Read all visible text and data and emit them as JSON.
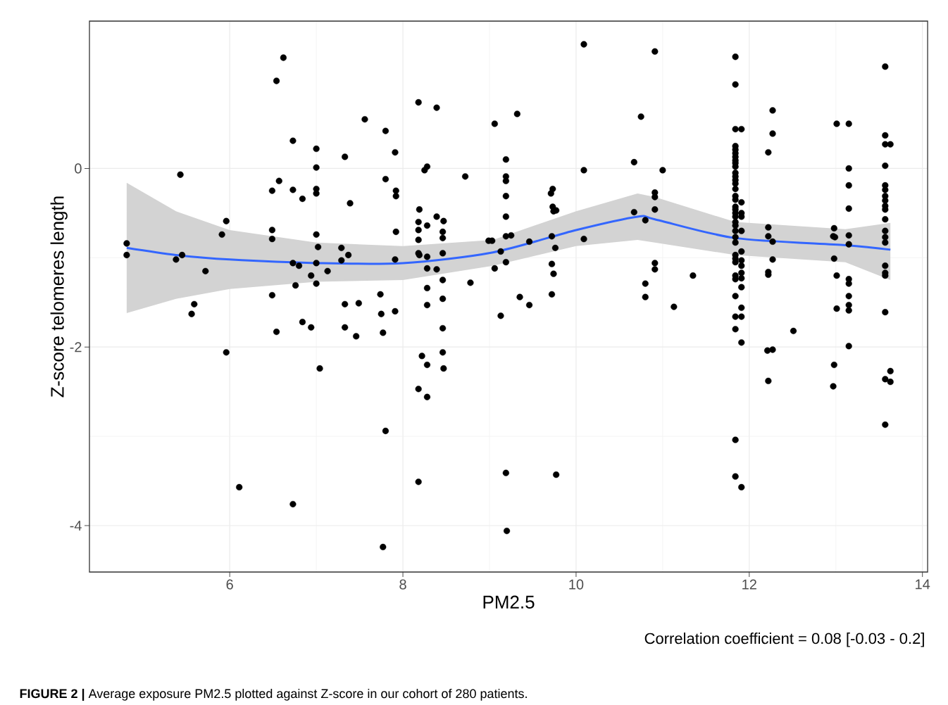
{
  "chart_data": {
    "type": "scatter",
    "xlabel": "PM2.5",
    "ylabel": "Z-score telomeres length",
    "annotations": [
      "Correlation coefficient = 0.08 [-0.03 - 0.2]",
      "**FIGURE 2 |** Average exposure PM2.5 plotted against Z-score in our cohort of 280 patients."
    ],
    "xlim": [
      4.38,
      14.06
    ],
    "ylim": [
      -4.52,
      1.65
    ],
    "xticks": [
      6,
      8,
      10,
      12,
      14
    ],
    "yticks": [
      -4,
      -2,
      0
    ],
    "grid": true,
    "series": [
      {
        "type": "scatter",
        "color": "#000000",
        "marker": "circle",
        "x": [
          4.81,
          4.81,
          5.38,
          5.43,
          5.45,
          5.56,
          5.59,
          5.72,
          5.91,
          5.96,
          5.96,
          6.11,
          6.49,
          6.49,
          6.49,
          6.49,
          6.54,
          6.54,
          6.57,
          6.62,
          6.73,
          6.73,
          6.73,
          6.73,
          6.76,
          6.8,
          6.84,
          6.84,
          6.94,
          6.94,
          7.0,
          7.0,
          7.0,
          7.0,
          7.0,
          7.0,
          7.0,
          7.02,
          7.04,
          7.13,
          7.29,
          7.29,
          7.33,
          7.33,
          7.33,
          7.37,
          7.39,
          7.46,
          7.49,
          7.56,
          7.74,
          7.75,
          7.77,
          7.77,
          7.8,
          7.8,
          7.8,
          7.91,
          7.91,
          7.91,
          7.92,
          7.92,
          7.92,
          8.18,
          8.39,
          8.25,
          8.28,
          8.19,
          8.39,
          8.47,
          8.18,
          8.28,
          8.18,
          8.46,
          8.18,
          8.46,
          8.18,
          8.19,
          8.28,
          8.46,
          8.28,
          8.39,
          8.46,
          8.28,
          8.46,
          8.72,
          8.78,
          9.06,
          9.32,
          9.19,
          9.19,
          9.19,
          9.19,
          9.19,
          9.19,
          9.25,
          8.99,
          9.03,
          9.13,
          9.19,
          9.06,
          9.46,
          9.35,
          9.72,
          9.76,
          9.73,
          9.71,
          9.73,
          9.74,
          9.77,
          9.72,
          9.74,
          9.72,
          10.09,
          10.09,
          10.09,
          10.67,
          10.75,
          10.67,
          10.8,
          8.28,
          8.46,
          8.22,
          8.28,
          8.46,
          8.47,
          8.18,
          8.28,
          8.18,
          9.13,
          9.46,
          9.19,
          9.77,
          9.2,
          10.8,
          10.8,
          10.91,
          10.91,
          10.91,
          10.91,
          11.0,
          10.91,
          10.91,
          11.35,
          11.13,
          11.84,
          11.84,
          11.84,
          11.91,
          11.84,
          11.84,
          11.84,
          11.84,
          11.84,
          11.84,
          11.84,
          11.84,
          11.84,
          11.84,
          11.84,
          11.84,
          11.84,
          11.84,
          11.84,
          11.84,
          11.84,
          11.84,
          11.84,
          11.84,
          11.84,
          11.84,
          11.84,
          11.84,
          11.84,
          11.84,
          11.84,
          11.84,
          11.84,
          11.91,
          11.91,
          11.91,
          11.91,
          11.91,
          11.91,
          11.91,
          11.91,
          11.91,
          11.91,
          11.84,
          11.84,
          11.84,
          11.84,
          11.91,
          11.91,
          11.91,
          11.91,
          12.27,
          12.27,
          12.22,
          12.22,
          12.22,
          12.27,
          12.27,
          12.22,
          12.22,
          12.21,
          12.27,
          12.22,
          12.51,
          13.01,
          13.15,
          13.15,
          13.15,
          13.15,
          12.98,
          12.97,
          12.99,
          13.15,
          13.15,
          12.98,
          13.01,
          13.15,
          13.15,
          13.15,
          13.15,
          13.15,
          13.01,
          13.15,
          12.98,
          12.97,
          13.57,
          13.57,
          13.57,
          13.63,
          13.57,
          13.57,
          13.57,
          13.57,
          13.57,
          13.57,
          13.57,
          13.57,
          13.57,
          13.57,
          13.57,
          13.57,
          13.57,
          13.57,
          13.57,
          13.63,
          13.57,
          13.63,
          13.57
        ],
        "values": [
          -0.84,
          -0.97,
          -1.02,
          -0.07,
          -0.97,
          -1.63,
          -1.52,
          -1.15,
          -0.74,
          -0.59,
          -2.06,
          -3.57,
          -0.25,
          -0.69,
          -0.79,
          -1.42,
          0.98,
          -1.83,
          -0.14,
          1.24,
          0.31,
          -0.24,
          -1.06,
          -3.76,
          -1.31,
          -1.09,
          -0.34,
          -1.72,
          -1.2,
          -1.78,
          0.22,
          0.01,
          -0.23,
          -0.28,
          -0.74,
          -1.06,
          -1.29,
          -0.88,
          -2.24,
          -1.15,
          -0.89,
          -1.03,
          0.13,
          -1.52,
          -1.78,
          -0.97,
          -0.39,
          -1.88,
          -1.51,
          0.55,
          -1.41,
          -1.63,
          -1.84,
          -4.24,
          0.42,
          -0.12,
          -2.94,
          0.18,
          -1.02,
          -1.6,
          -0.25,
          -0.31,
          -0.71,
          0.74,
          0.68,
          -0.02,
          0.02,
          -0.46,
          -0.54,
          -0.59,
          -0.6,
          -0.64,
          -0.69,
          -0.71,
          -0.8,
          -0.78,
          -0.95,
          -0.97,
          -0.99,
          -0.95,
          -1.12,
          -1.13,
          -1.25,
          -1.34,
          -1.46,
          -0.09,
          -1.28,
          0.5,
          0.61,
          0.1,
          -0.09,
          -0.14,
          -0.31,
          -0.54,
          -0.76,
          -0.75,
          -0.81,
          -0.81,
          -0.93,
          -1.05,
          -1.12,
          -0.82,
          -1.44,
          -0.76,
          -0.89,
          -0.23,
          -0.28,
          -0.43,
          -0.48,
          -0.47,
          -1.07,
          -1.18,
          -1.41,
          1.39,
          -0.02,
          -0.79,
          0.07,
          0.58,
          -0.49,
          -0.58,
          -1.53,
          -1.79,
          -2.1,
          -2.2,
          -2.06,
          -2.24,
          -2.47,
          -2.56,
          -3.51,
          -1.65,
          -1.53,
          -3.41,
          -3.43,
          -4.06,
          -1.44,
          -1.29,
          1.31,
          -0.27,
          -0.32,
          -0.46,
          -0.02,
          -1.06,
          -1.13,
          -1.2,
          -1.55,
          1.25,
          0.94,
          0.44,
          0.44,
          0.25,
          0.21,
          0.17,
          0.13,
          0.09,
          0.06,
          0.02,
          -0.05,
          -0.09,
          -0.13,
          -0.17,
          -0.23,
          -0.31,
          -0.35,
          -0.43,
          -0.46,
          -0.5,
          -0.54,
          -0.6,
          -0.64,
          -0.7,
          -0.77,
          -0.83,
          -0.97,
          -1.01,
          -1.05,
          -1.2,
          -1.24,
          -1.43,
          -0.38,
          -0.5,
          -0.54,
          -0.7,
          -0.93,
          -1.03,
          -1.09,
          -1.17,
          -1.23,
          -1.33,
          -1.66,
          -1.8,
          -3.04,
          -3.45,
          -1.56,
          -1.66,
          -1.95,
          -3.57,
          0.65,
          0.39,
          0.18,
          -0.66,
          -0.76,
          -0.82,
          -1.02,
          -1.16,
          -1.19,
          -2.04,
          -2.03,
          -2.38,
          -1.82,
          0.5,
          0.5,
          0.0,
          -0.19,
          -0.45,
          -0.67,
          -0.76,
          -0.77,
          -0.75,
          -0.85,
          -1.01,
          -1.2,
          -1.24,
          -1.29,
          -1.43,
          -1.53,
          -1.59,
          -1.57,
          -1.99,
          -2.2,
          -2.44,
          1.14,
          0.37,
          0.27,
          0.27,
          0.03,
          -0.19,
          -0.24,
          -0.31,
          -0.36,
          -0.42,
          -0.46,
          -0.57,
          -0.7,
          -0.77,
          -0.83,
          -1.09,
          -1.17,
          -1.2,
          -1.61,
          -2.27,
          -2.36,
          -2.39,
          -2.87
        ]
      },
      {
        "type": "line",
        "color": "#3366ff",
        "line_style": "solid",
        "x": [
          4.81,
          5.38,
          6.0,
          7.0,
          8.0,
          9.04,
          10.0,
          10.71,
          10.91,
          11.84,
          13.11,
          13.63
        ],
        "values": [
          -0.89,
          -0.97,
          -1.02,
          -1.06,
          -1.06,
          -0.94,
          -0.69,
          -0.54,
          -0.57,
          -0.78,
          -0.86,
          -0.91
        ],
        "lower": [
          -1.62,
          -1.46,
          -1.35,
          -1.27,
          -1.25,
          -1.09,
          -0.87,
          -0.8,
          -0.83,
          -0.97,
          -1.05,
          -1.25
        ],
        "upper": [
          -0.16,
          -0.48,
          -0.69,
          -0.83,
          -0.87,
          -0.8,
          -0.48,
          -0.28,
          -0.32,
          -0.6,
          -0.68,
          -0.61
        ]
      }
    ]
  }
}
